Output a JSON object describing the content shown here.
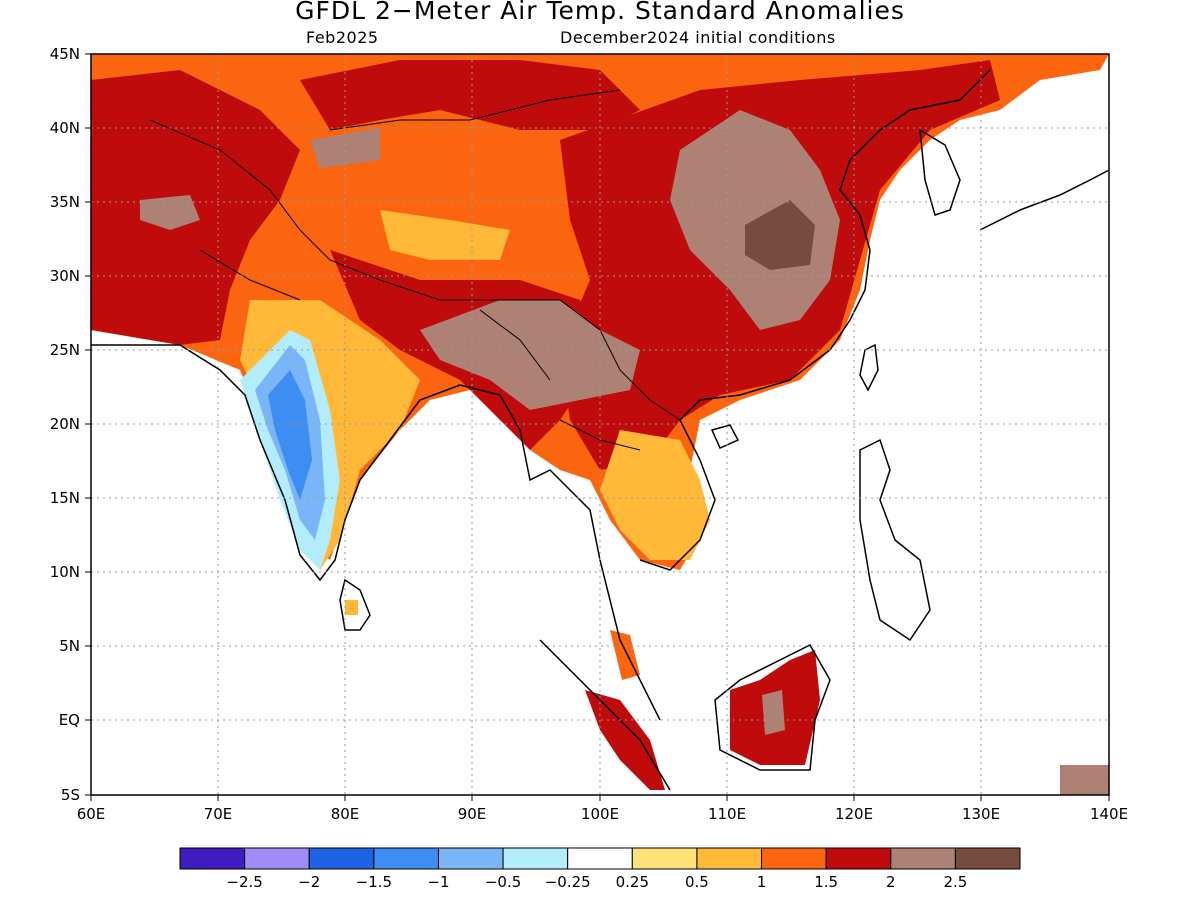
{
  "title": "GFDL 2−Meter Air Temp. Standard Anomalies",
  "subtitle_left": "Feb2025",
  "subtitle_right": "December2024 initial conditions",
  "axes": {
    "lon_labels": [
      "60E",
      "70E",
      "80E",
      "90E",
      "100E",
      "110E",
      "120E",
      "130E",
      "140E"
    ],
    "lat_labels": [
      "45N",
      "40N",
      "35N",
      "30N",
      "25N",
      "20N",
      "15N",
      "10N",
      "5N",
      "EQ",
      "5S"
    ]
  },
  "colorbar": {
    "colors": [
      "#3e1cbf",
      "#a08cf7",
      "#1f63e5",
      "#3d8df2",
      "#79b5f7",
      "#b3ecfa",
      "#ffffff",
      "#ffe17a",
      "#ffb837",
      "#fb6510",
      "#c00b0c",
      "#ad8275",
      "#764c3f"
    ],
    "labels": [
      "−2.5",
      "−2",
      "−1.5",
      "−1",
      "−0.5",
      "−0.25",
      "0.25",
      "0.5",
      "1",
      "1.5",
      "2",
      "2.5"
    ]
  },
  "legend_colors": {
    "land_warm_2_to_2_5": "#ad8275",
    "land_warm_gt_2_5": "#764c3f",
    "coastline": "#000000",
    "gridline": "#9a9a9a"
  }
}
